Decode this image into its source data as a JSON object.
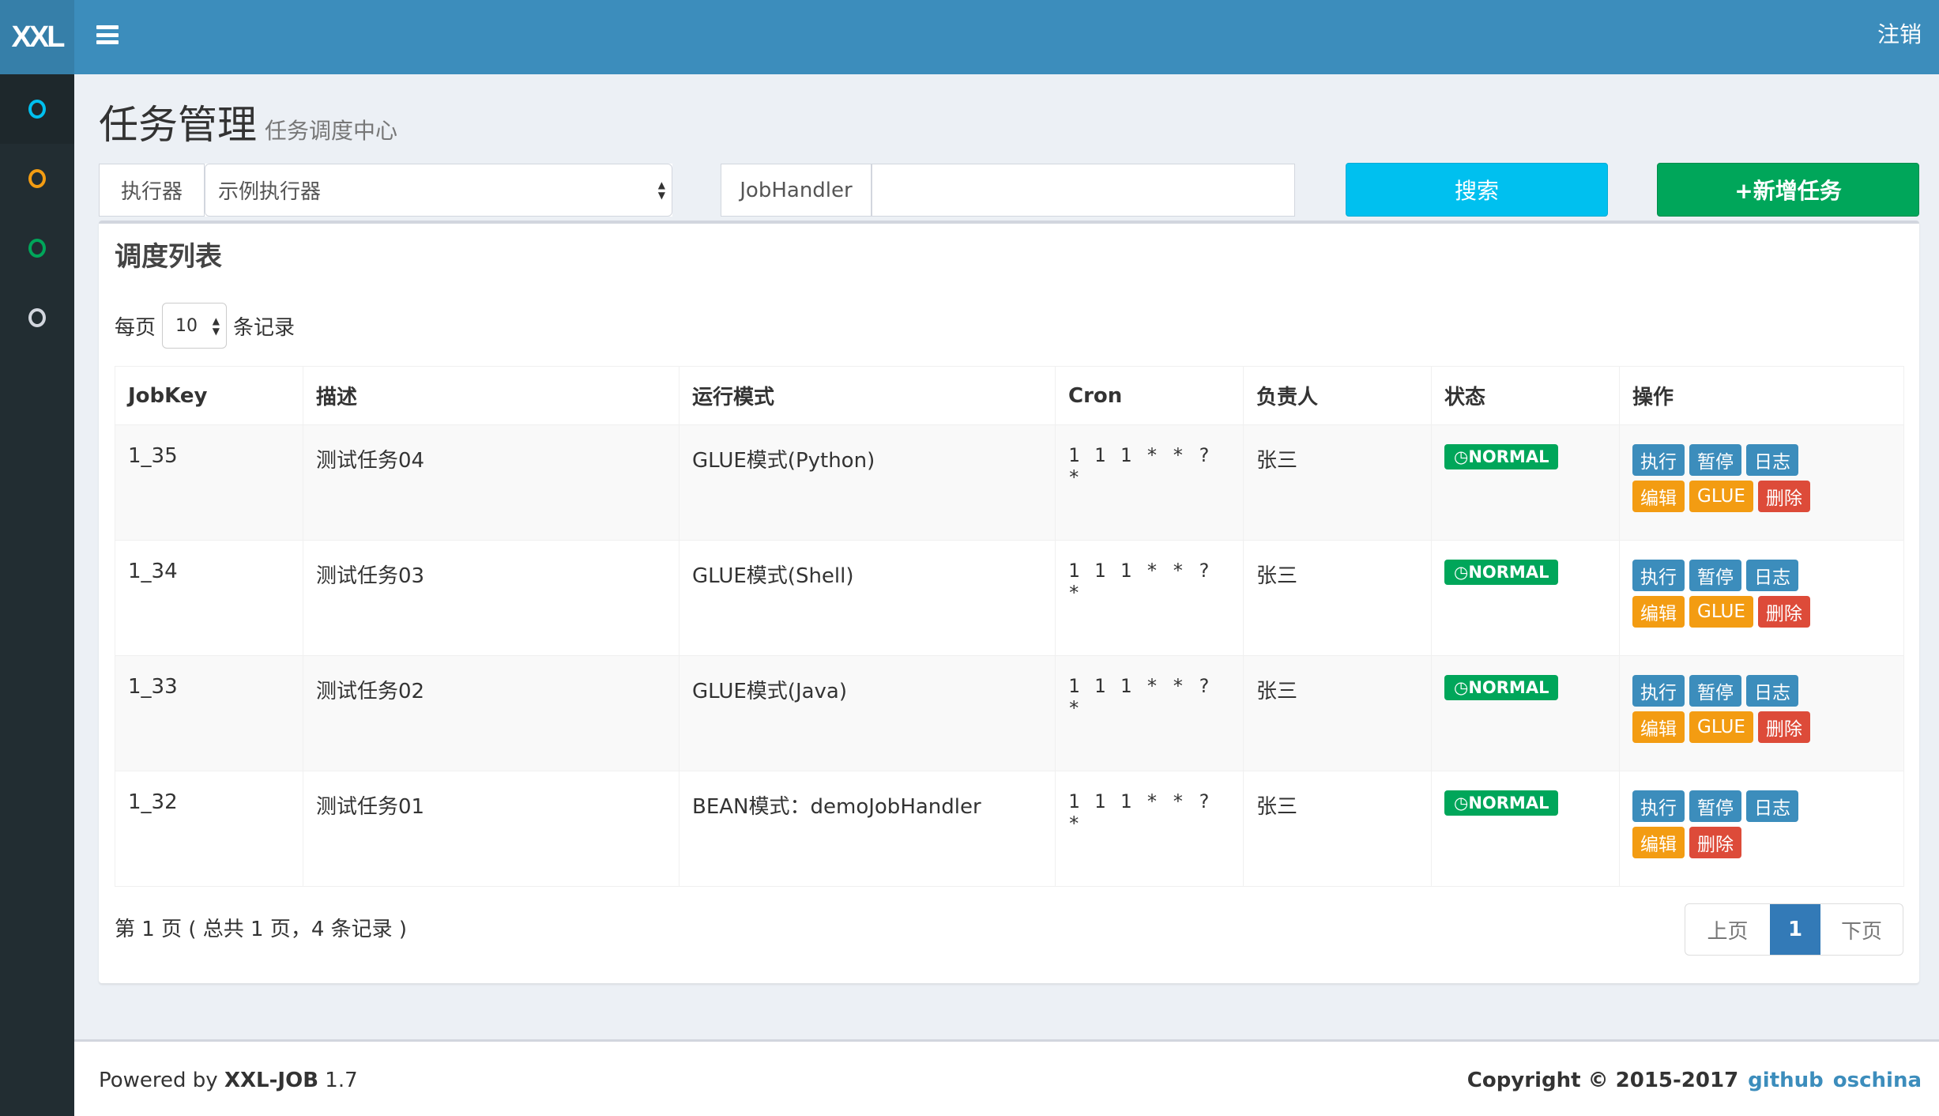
{
  "header": {
    "logo": "XXL",
    "logout": "注销"
  },
  "sidebar": {
    "items": [
      {
        "icon": "circle-icon",
        "color": "#00c0ef"
      },
      {
        "icon": "circle-icon",
        "color": "#f39c12"
      },
      {
        "icon": "circle-icon",
        "color": "#00a65a"
      },
      {
        "icon": "circle-icon",
        "color": "#d2d6de"
      }
    ]
  },
  "page": {
    "title": "任务管理",
    "subtitle": "任务调度中心"
  },
  "filters": {
    "executor_label": "执行器",
    "executor_value": "示例执行器",
    "jobhandler_label": "JobHandler",
    "jobhandler_value": "",
    "search": "搜索",
    "add": "+新增任务"
  },
  "box": {
    "title": "调度列表",
    "per_page_prefix": "每页",
    "per_page_value": "10",
    "per_page_suffix": "条记录",
    "columns": [
      "JobKey",
      "描述",
      "运行模式",
      "Cron",
      "负责人",
      "状态",
      "操作"
    ],
    "rows": [
      {
        "key": "1_35",
        "desc": "测试任务04",
        "mode": "GLUE模式(Python)",
        "cron": "1 1 1 * * ? *",
        "owner": "张三",
        "status": "NORMAL",
        "ops": [
          "执行",
          "暂停",
          "日志",
          "编辑",
          "GLUE",
          "删除"
        ]
      },
      {
        "key": "1_34",
        "desc": "测试任务03",
        "mode": "GLUE模式(Shell)",
        "cron": "1 1 1 * * ? *",
        "owner": "张三",
        "status": "NORMAL",
        "ops": [
          "执行",
          "暂停",
          "日志",
          "编辑",
          "GLUE",
          "删除"
        ]
      },
      {
        "key": "1_33",
        "desc": "测试任务02",
        "mode": "GLUE模式(Java)",
        "cron": "1 1 1 * * ? *",
        "owner": "张三",
        "status": "NORMAL",
        "ops": [
          "执行",
          "暂停",
          "日志",
          "编辑",
          "GLUE",
          "删除"
        ]
      },
      {
        "key": "1_32",
        "desc": "测试任务01",
        "mode": "BEAN模式：demoJobHandler",
        "cron": "1 1 1 * * ? *",
        "owner": "张三",
        "status": "NORMAL",
        "ops": [
          "执行",
          "暂停",
          "日志",
          "编辑",
          "删除"
        ]
      }
    ],
    "info": "第 1 页 ( 总共 1 页，4 条记录 )",
    "pager": {
      "prev": "上页",
      "current": "1",
      "next": "下页"
    }
  },
  "footer": {
    "powered_prefix": "Powered by ",
    "product": "XXL-JOB",
    "version": " 1.7",
    "copyright": "Copyright © 2015-2017",
    "links": [
      "github",
      "oschina"
    ]
  }
}
